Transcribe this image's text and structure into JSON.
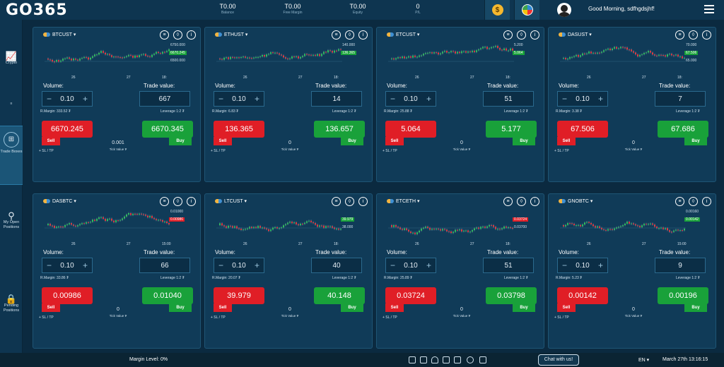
{
  "header": {
    "logo": "GO365",
    "stats": [
      {
        "value": "T0.00",
        "label": "Balance"
      },
      {
        "value": "T0.00",
        "label": "Free Margin"
      },
      {
        "value": "T0.00",
        "label": "Equity"
      },
      {
        "value": "0",
        "label": "P/L"
      }
    ],
    "coin_icon": "dollar-coin-icon",
    "greeting": "Good Morning, sdfhgdsjhf!"
  },
  "sidebar": {
    "items": [
      {
        "label": "Crypto",
        "icon": "chart-icon"
      },
      {
        "label": "Trade Boxes",
        "icon": "grid-icon"
      },
      {
        "label": "My Open Positions",
        "icon": "search-icon"
      },
      {
        "label": "Pending Positions",
        "icon": "lock-icon"
      }
    ]
  },
  "common": {
    "volume_label": "Volume:",
    "trade_value_label": "Trade value:",
    "sell_tag": "Sell",
    "buy_tag": "Buy",
    "sl_tp": "+ SL / TP",
    "tick_value_label": "Tick Value ₮",
    "volume": "0.10",
    "minus": "−",
    "plus": "+"
  },
  "cards": [
    {
      "symbol": "BTCUST",
      "trade_value": "667",
      "rmargin": "R.Margin: 333.52 ₮",
      "leverage": "Leverage 1:2 ₮",
      "sell": "6670.245",
      "buy": "6670.345",
      "tick": "0.001",
      "x1": "26",
      "x2": "27",
      "x3": "18:",
      "y_top": "6750.000",
      "y_mid": "6670.245",
      "y_bot": "6500.000",
      "tag_color": "#19a13a"
    },
    {
      "symbol": "ETHUST",
      "trade_value": "14",
      "rmargin": "R.Margin: 6.83 ₮",
      "leverage": "Leverage 1:2 ₮",
      "sell": "136.365",
      "buy": "136.657",
      "tick": "0",
      "x1": "26",
      "x2": "27",
      "x3": "18:",
      "y_top": "140.000",
      "y_mid": "136.365",
      "y_bot": "",
      "tag_color": "#19a13a"
    },
    {
      "symbol": "ETCUST",
      "trade_value": "51",
      "rmargin": "R.Margin: 25.88 ₮",
      "leverage": "Leverage 1:2 ₮",
      "sell": "5.064",
      "buy": "5.177",
      "tick": "0",
      "x1": "26",
      "x2": "27",
      "x3": "18:",
      "y_top": "5.200",
      "y_mid": "5.064",
      "y_bot": "",
      "tag_color": "#19a13a"
    },
    {
      "symbol": "DASUST",
      "trade_value": "7",
      "rmargin": "R.Margin: 3.38 ₮",
      "leverage": "Leverage 1:2 ₮",
      "sell": "67.506",
      "buy": "67.686",
      "tick": "0",
      "x1": "26",
      "x2": "27",
      "x3": "18:",
      "y_top": "70.000",
      "y_mid": "67.506",
      "y_bot": "65.000",
      "tag_color": "#19a13a"
    },
    {
      "symbol": "DASBTC",
      "trade_value": "66",
      "rmargin": "R.Margin: 33.86 ₮",
      "leverage": "Leverage 1:2 ₮",
      "sell": "0.00986",
      "buy": "0.01040",
      "tick": "0",
      "x1": "26",
      "x2": "27",
      "x3": "15:00",
      "y_top": "0.01000",
      "y_mid": "0.00986",
      "y_bot": "",
      "tag_color": "#e01e26"
    },
    {
      "symbol": "LTCUST",
      "trade_value": "40",
      "rmargin": "R.Margin: 20.07 ₮",
      "leverage": "Leverage 1:2 ₮",
      "sell": "39.979",
      "buy": "40.148",
      "tick": "0",
      "x1": "26",
      "x2": "27",
      "x3": "18:",
      "y_top": "",
      "y_mid": "39.979",
      "y_bot": "38.000",
      "tag_color": "#19a13a"
    },
    {
      "symbol": "ETCETH",
      "trade_value": "51",
      "rmargin": "R.Margin: 25.89 ₮",
      "leverage": "Leverage 1:2 ₮",
      "sell": "0.03724",
      "buy": "0.03798",
      "tick": "0",
      "x1": "26",
      "x2": "27",
      "x3": "18:",
      "y_top": "",
      "y_mid": "0.03724",
      "y_bot": "0.03700",
      "tag_color": "#e01e26"
    },
    {
      "symbol": "GNOBTC",
      "trade_value": "9",
      "rmargin": "R.Margin: 5.23 ₮",
      "leverage": "Leverage 1:2 ₮",
      "sell": "0.00142",
      "buy": "0.00196",
      "tick": "0",
      "x1": "26",
      "x2": "27",
      "x3": "15:00",
      "y_top": "0.00160",
      "y_mid": "0.00142",
      "y_bot": "",
      "tag_color": "#19a13a"
    }
  ],
  "footer": {
    "margin_level": "Margin Level: 0%",
    "chat": "Chat with us!",
    "lang": "EN ▾",
    "datetime": "March 27th 13:16:15"
  }
}
